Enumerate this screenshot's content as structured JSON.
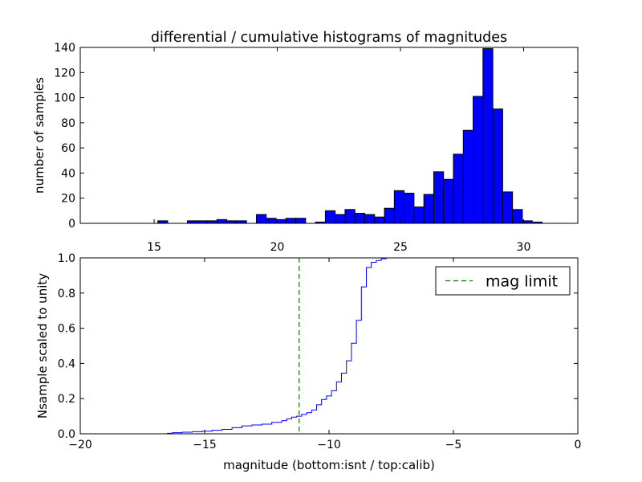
{
  "chart_data": [
    {
      "type": "bar",
      "title": "differential / cumulative histograms of magnitudes",
      "xlabel": "",
      "ylabel": "number of samples",
      "xlim": [
        12,
        32.2
      ],
      "ylim": [
        0,
        140
      ],
      "xticks": [
        "15",
        "20",
        "25",
        "30"
      ],
      "yticks": [
        "0",
        "20",
        "40",
        "60",
        "80",
        "100",
        "120",
        "140"
      ],
      "tick_labels_position": "x ticks drawn below panel",
      "bar_color": "#0000ff",
      "bins": [
        {
          "x0": 15.15,
          "x1": 15.55,
          "value": 2
        },
        {
          "x0": 16.35,
          "x1": 16.75,
          "value": 2
        },
        {
          "x0": 16.75,
          "x1": 17.15,
          "value": 2
        },
        {
          "x0": 17.15,
          "x1": 17.55,
          "value": 2
        },
        {
          "x0": 17.55,
          "x1": 17.95,
          "value": 3
        },
        {
          "x0": 17.95,
          "x1": 18.35,
          "value": 2
        },
        {
          "x0": 18.35,
          "x1": 18.75,
          "value": 2
        },
        {
          "x0": 19.15,
          "x1": 19.55,
          "value": 7
        },
        {
          "x0": 19.55,
          "x1": 19.95,
          "value": 4
        },
        {
          "x0": 19.95,
          "x1": 20.35,
          "value": 3
        },
        {
          "x0": 20.35,
          "x1": 20.75,
          "value": 4
        },
        {
          "x0": 20.75,
          "x1": 21.15,
          "value": 4
        },
        {
          "x0": 21.55,
          "x1": 21.95,
          "value": 1
        },
        {
          "x0": 21.95,
          "x1": 22.35,
          "value": 10
        },
        {
          "x0": 22.35,
          "x1": 22.75,
          "value": 7
        },
        {
          "x0": 22.75,
          "x1": 23.15,
          "value": 11
        },
        {
          "x0": 23.15,
          "x1": 23.55,
          "value": 8
        },
        {
          "x0": 23.55,
          "x1": 23.95,
          "value": 7
        },
        {
          "x0": 23.95,
          "x1": 24.35,
          "value": 5
        },
        {
          "x0": 24.35,
          "x1": 24.75,
          "value": 12
        },
        {
          "x0": 24.75,
          "x1": 25.15,
          "value": 26
        },
        {
          "x0": 25.15,
          "x1": 25.55,
          "value": 24
        },
        {
          "x0": 25.55,
          "x1": 25.95,
          "value": 13
        },
        {
          "x0": 25.95,
          "x1": 26.35,
          "value": 23
        },
        {
          "x0": 26.35,
          "x1": 26.75,
          "value": 41
        },
        {
          "x0": 26.75,
          "x1": 27.15,
          "value": 35
        },
        {
          "x0": 27.15,
          "x1": 27.55,
          "value": 55
        },
        {
          "x0": 27.55,
          "x1": 27.95,
          "value": 74
        },
        {
          "x0": 27.95,
          "x1": 28.35,
          "value": 101
        },
        {
          "x0": 28.35,
          "x1": 28.75,
          "value": 139
        },
        {
          "x0": 28.75,
          "x1": 29.15,
          "value": 91
        },
        {
          "x0": 29.15,
          "x1": 29.55,
          "value": 25
        },
        {
          "x0": 29.55,
          "x1": 29.95,
          "value": 11
        },
        {
          "x0": 29.95,
          "x1": 30.35,
          "value": 2
        },
        {
          "x0": 30.35,
          "x1": 30.75,
          "value": 1
        }
      ]
    },
    {
      "type": "line",
      "step": true,
      "xlabel": "magnitude (bottom:isnt / top:calib)",
      "ylabel": "Nsample scaled to unity",
      "xlim": [
        -20,
        0
      ],
      "ylim": [
        0,
        1.0
      ],
      "xticks": [
        "−20",
        "−15",
        "−10",
        "−5",
        "0"
      ],
      "yticks": [
        "0.0",
        "0.2",
        "0.4",
        "0.6",
        "0.8",
        "1.0"
      ],
      "series": [
        {
          "color": "#0000ff",
          "x": [
            -20,
            -16.5,
            -16.3,
            -15.9,
            -15.5,
            -15.1,
            -14.7,
            -14.3,
            -13.9,
            -13.5,
            -13.1,
            -12.7,
            -12.3,
            -11.9,
            -11.7,
            -11.5,
            -11.3,
            -11.1,
            -10.9,
            -10.7,
            -10.5,
            -10.3,
            -10.1,
            -9.9,
            -9.7,
            -9.5,
            -9.3,
            -9.1,
            -8.9,
            -8.7,
            -8.5,
            -8.3,
            -8.1,
            -7.9,
            -7.7,
            -7.5,
            -7.3,
            0
          ],
          "y": [
            0.0,
            0.003,
            0.006,
            0.009,
            0.012,
            0.015,
            0.02,
            0.025,
            0.035,
            0.045,
            0.05,
            0.055,
            0.065,
            0.075,
            0.085,
            0.095,
            0.1,
            0.11,
            0.12,
            0.135,
            0.165,
            0.195,
            0.215,
            0.245,
            0.295,
            0.345,
            0.415,
            0.515,
            0.645,
            0.835,
            0.945,
            0.975,
            0.985,
            0.995,
            1.0,
            1.0,
            1.0,
            1.0
          ]
        }
      ],
      "vline": {
        "name": "mag limit",
        "x": -11.2,
        "color": "#008000",
        "style": "dashed"
      },
      "legend": {
        "label": "mag limit",
        "placement": "top-right"
      }
    }
  ]
}
